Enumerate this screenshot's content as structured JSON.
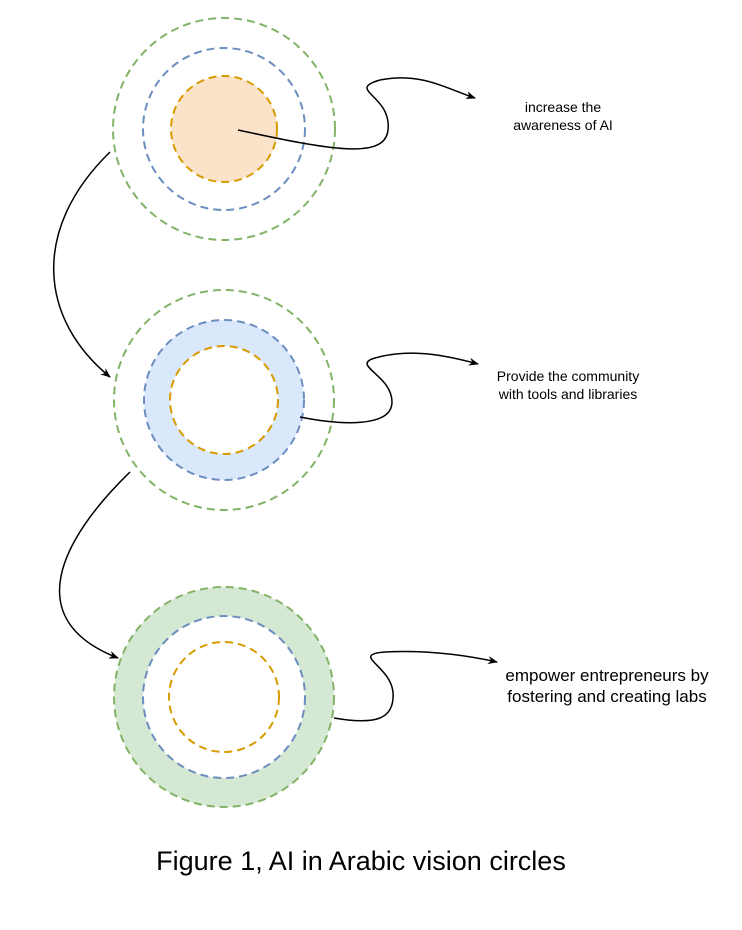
{
  "colors": {
    "outer_ring": "#82b366",
    "middle_ring": "#6c8ebf",
    "inner_ring": "#d79b00",
    "fill_level_1": "#fbe3ca",
    "fill_level_2": "#dae8fc",
    "fill_level_3": "#d5e8d4",
    "arrow": "#000000"
  },
  "levels": [
    {
      "label": "increase the\nawareness of AI",
      "highlighted_ring": "inner"
    },
    {
      "label": "Provide the community\nwith tools and libraries",
      "highlighted_ring": "middle"
    },
    {
      "label": "empower entrepreneurs by\nfostering and creating labs",
      "highlighted_ring": "outer"
    }
  ],
  "caption": "Figure 1, AI in Arabic vision circles"
}
